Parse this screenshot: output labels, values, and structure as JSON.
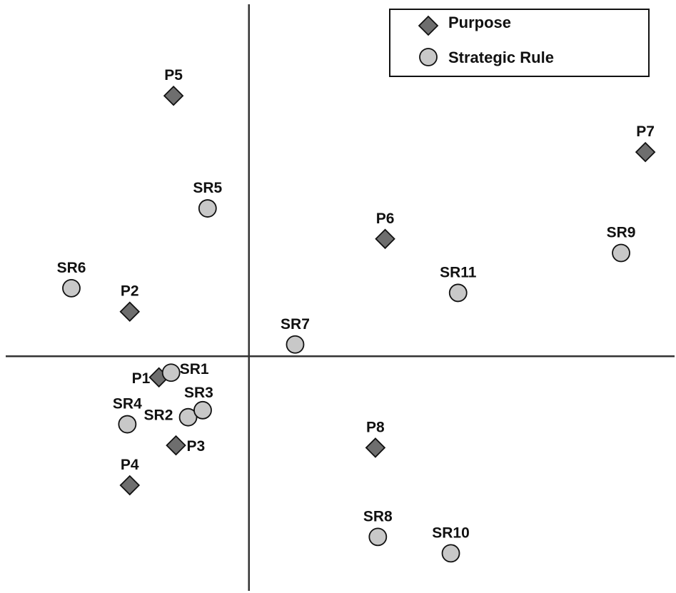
{
  "chart_data": {
    "type": "scatter",
    "title": "",
    "xlabel": "",
    "ylabel": "",
    "xlim": [
      -1.0,
      1.75
    ],
    "ylim": [
      -1.0,
      1.5
    ],
    "grid": false,
    "axes_through_origin": true,
    "legend_position": "top-right",
    "series": [
      {
        "name": "Purpose",
        "marker": "diamond",
        "color": "#6e6e6e",
        "points": [
          {
            "label": "P1",
            "x": -0.37,
            "y": -0.09
          },
          {
            "label": "P2",
            "x": -0.49,
            "y": 0.19
          },
          {
            "label": "P3",
            "x": -0.3,
            "y": -0.38
          },
          {
            "label": "P4",
            "x": -0.49,
            "y": -0.55
          },
          {
            "label": "P5",
            "x": -0.31,
            "y": 1.11
          },
          {
            "label": "P6",
            "x": 0.56,
            "y": 0.5
          },
          {
            "label": "P7",
            "x": 1.63,
            "y": 0.87
          },
          {
            "label": "P8",
            "x": 0.52,
            "y": -0.39
          }
        ]
      },
      {
        "name": "Strategic Rule",
        "marker": "circle",
        "color": "#c8c8c8",
        "points": [
          {
            "label": "SR1",
            "x": -0.32,
            "y": -0.07
          },
          {
            "label": "SR2",
            "x": -0.25,
            "y": -0.26
          },
          {
            "label": "SR3",
            "x": -0.19,
            "y": -0.23
          },
          {
            "label": "SR4",
            "x": -0.5,
            "y": -0.29
          },
          {
            "label": "SR5",
            "x": -0.17,
            "y": 0.63
          },
          {
            "label": "SR6",
            "x": -0.73,
            "y": 0.29
          },
          {
            "label": "SR7",
            "x": 0.19,
            "y": 0.05
          },
          {
            "label": "SR8",
            "x": 0.53,
            "y": -0.77
          },
          {
            "label": "SR9",
            "x": 1.53,
            "y": 0.44
          },
          {
            "label": "SR10",
            "x": 0.83,
            "y": -0.84
          },
          {
            "label": "SR11",
            "x": 0.86,
            "y": 0.27
          }
        ]
      }
    ]
  }
}
